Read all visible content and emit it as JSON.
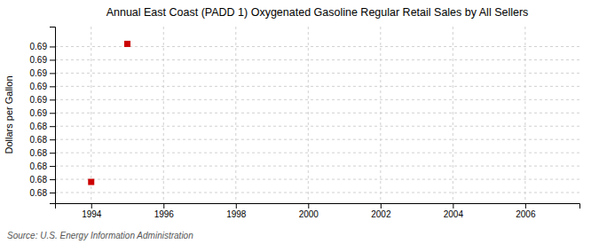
{
  "chart_data": {
    "type": "scatter",
    "title": "Annual East Coast (PADD 1) Oxygenated Gasoline Regular Retail Sales by All Sellers",
    "ylabel": "Dollars per Gallon",
    "annotations": [
      "Source: U.S. Energy Information Administration"
    ],
    "x": [
      1994,
      1995
    ],
    "values": [
      0.6798,
      0.6902
    ],
    "color": "#cc0000",
    "marker": "square",
    "xlim": [
      1993.0,
      2007.5
    ],
    "ylim": [
      0.6782,
      0.6915
    ],
    "xticks": [
      1994,
      1996,
      1998,
      2000,
      2002,
      2004,
      2006
    ],
    "yticks": [
      {
        "value": 0.679,
        "label": "0.68"
      },
      0.68,
      {
        "value": 0.681,
        "label": "0.68"
      },
      {
        "value": 0.682,
        "label": "0.68"
      },
      {
        "value": 0.683,
        "label": "0.68"
      },
      {
        "value": 0.684,
        "label": "0.68"
      },
      {
        "value": 0.685,
        "label": "0.69"
      },
      {
        "value": 0.686,
        "label": "0.69"
      },
      {
        "value": 0.687,
        "label": "0.69"
      },
      {
        "value": 0.688,
        "label": "0.69"
      },
      {
        "value": 0.689,
        "label": "0.69"
      },
      0.69
    ],
    "grid": true
  }
}
